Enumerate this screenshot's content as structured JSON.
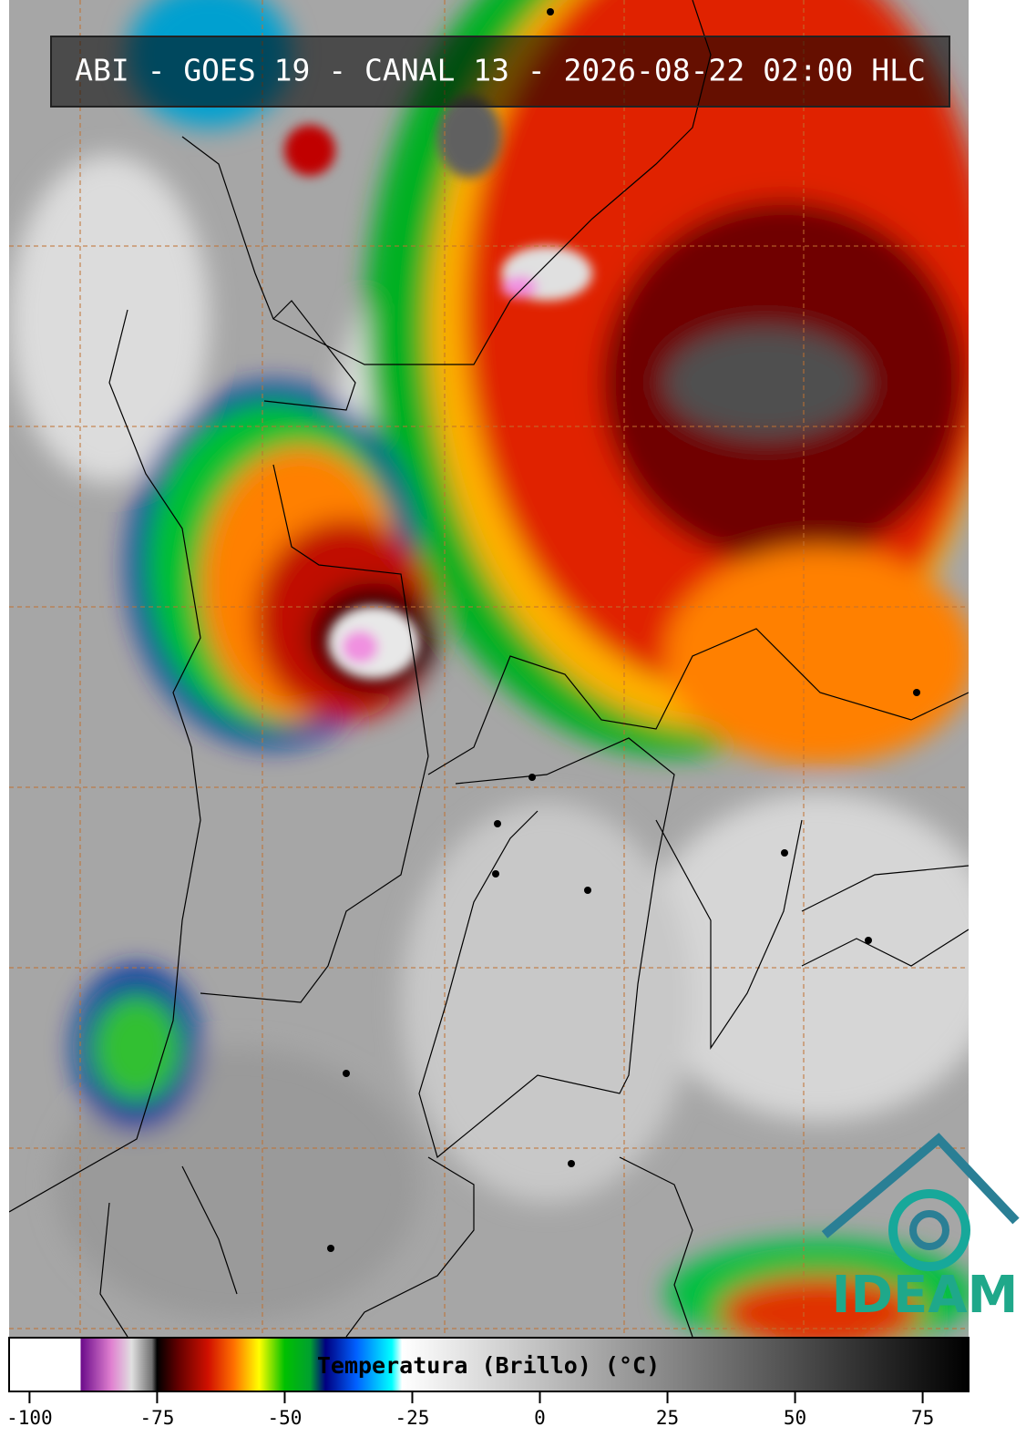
{
  "header": {
    "title": "ABI - GOES 19 - CANAL 13 - 2026-08-22 02:00 HLC"
  },
  "logo": {
    "text": "IDEAM"
  },
  "colorbar": {
    "label": "Temperatura (Brillo) (°C)",
    "xlim": [
      -104,
      84
    ],
    "xticks": [
      -100,
      -75,
      -50,
      -25,
      0,
      25,
      50,
      75
    ],
    "colormap": [
      {
        "value": -104,
        "color": "#ffffff"
      },
      {
        "value": -90,
        "color": "#ffffff"
      },
      {
        "value": -90,
        "color": "#6a0a8a"
      },
      {
        "value": -84,
        "color": "#e080d0"
      },
      {
        "value": -80,
        "color": "#e0e0e0"
      },
      {
        "value": -76,
        "color": "#707070"
      },
      {
        "value": -75,
        "color": "#000000"
      },
      {
        "value": -71,
        "color": "#600000"
      },
      {
        "value": -65,
        "color": "#d01000"
      },
      {
        "value": -60,
        "color": "#ff7000"
      },
      {
        "value": -55,
        "color": "#ffff00"
      },
      {
        "value": -50,
        "color": "#00c000"
      },
      {
        "value": -45,
        "color": "#00a030"
      },
      {
        "value": -42,
        "color": "#000080"
      },
      {
        "value": -36,
        "color": "#0060ff"
      },
      {
        "value": -29,
        "color": "#00ffff"
      },
      {
        "value": -27,
        "color": "#ffffff"
      },
      {
        "value": 84,
        "color": "#000000"
      }
    ]
  }
}
